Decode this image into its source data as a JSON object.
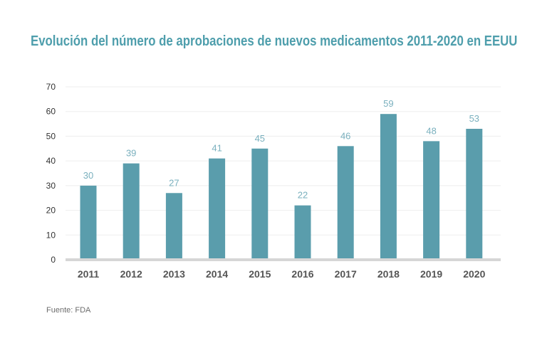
{
  "chart_data": {
    "type": "bar",
    "title": "Evolución del número de aprobaciones de nuevos medicamentos 2011-2020 en EEUU",
    "xlabel": "",
    "ylabel": "",
    "categories": [
      "2011",
      "2012",
      "2013",
      "2014",
      "2015",
      "2016",
      "2017",
      "2018",
      "2019",
      "2020"
    ],
    "values": [
      30,
      39,
      27,
      41,
      45,
      22,
      46,
      59,
      48,
      53
    ],
    "data_labels": [
      "30",
      "39",
      "27",
      "41",
      "45",
      "22",
      "46",
      "59",
      "48",
      "53"
    ],
    "ylim": [
      0,
      70
    ],
    "yticks": [
      0,
      10,
      20,
      30,
      40,
      50,
      60,
      70
    ],
    "grid": true,
    "legend": "none",
    "source": "Fuente: FDA",
    "colors": {
      "bar": "#5a9dac",
      "title": "#4e9eac",
      "label": "#7ab0be",
      "grid": "#eeeeee",
      "baseline": "#d6d6d6"
    }
  }
}
